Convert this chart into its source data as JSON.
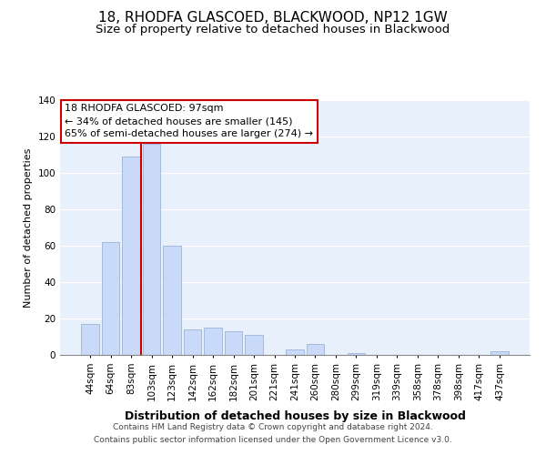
{
  "title": "18, RHODFA GLASCOED, BLACKWOOD, NP12 1GW",
  "subtitle": "Size of property relative to detached houses in Blackwood",
  "xlabel": "Distribution of detached houses by size in Blackwood",
  "ylabel": "Number of detached properties",
  "footer_line1": "Contains HM Land Registry data © Crown copyright and database right 2024.",
  "footer_line2": "Contains public sector information licensed under the Open Government Licence v3.0.",
  "annotation_line1": "18 RHODFA GLASCOED: 97sqm",
  "annotation_line2": "← 34% of detached houses are smaller (145)",
  "annotation_line3": "65% of semi-detached houses are larger (274) →",
  "bar_labels": [
    "44sqm",
    "64sqm",
    "83sqm",
    "103sqm",
    "123sqm",
    "142sqm",
    "162sqm",
    "182sqm",
    "201sqm",
    "221sqm",
    "241sqm",
    "260sqm",
    "280sqm",
    "299sqm",
    "319sqm",
    "339sqm",
    "358sqm",
    "378sqm",
    "398sqm",
    "417sqm",
    "437sqm"
  ],
  "bar_values": [
    17,
    62,
    109,
    116,
    60,
    14,
    15,
    13,
    11,
    0,
    3,
    6,
    0,
    1,
    0,
    0,
    0,
    0,
    0,
    0,
    2
  ],
  "bar_color": "#c9daf8",
  "bar_edge_color": "#9ab3d9",
  "vline_x": 2.5,
  "vline_color": "#cc0000",
  "ylim_max": 140,
  "yticks": [
    0,
    20,
    40,
    60,
    80,
    100,
    120,
    140
  ],
  "background_color": "#ffffff",
  "plot_background": "#e8f0fb",
  "grid_color": "#ffffff",
  "annotation_box_edge": "#cc0000",
  "annotation_bg": "#ffffff",
  "title_fontsize": 11,
  "subtitle_fontsize": 9.5,
  "xlabel_fontsize": 9,
  "ylabel_fontsize": 8,
  "tick_fontsize": 7.5,
  "footer_fontsize": 6.5,
  "annotation_fontsize": 8
}
